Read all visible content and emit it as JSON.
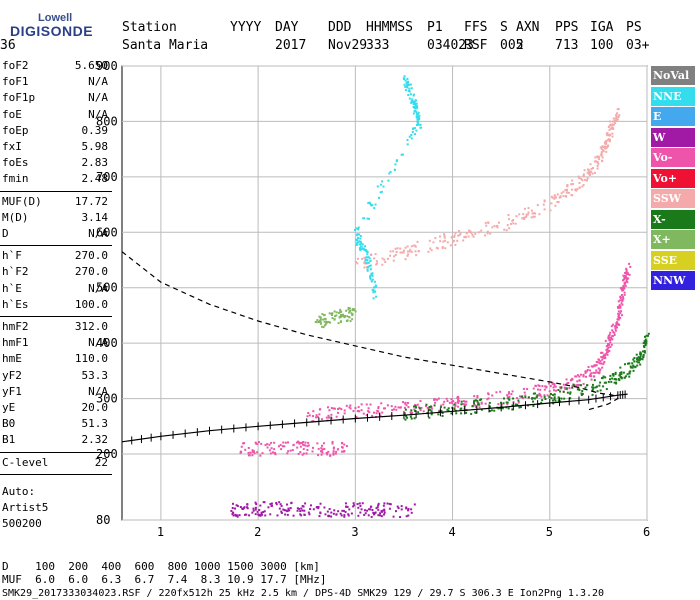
{
  "logo": {
    "top": "Lowell",
    "bottom": "DIGISONDE"
  },
  "header": {
    "labels": [
      "Station",
      "YYYY",
      "DAY",
      "DDD",
      "HHMMSS",
      "P1",
      "FFS",
      "S",
      "AXN",
      "PPS",
      "IGA",
      "PS"
    ],
    "values": [
      "Santa Maria",
      "2017",
      "Nov29",
      "333",
      "034023",
      "RSF",
      "005",
      "2",
      "713",
      "100",
      "03+",
      "36"
    ]
  },
  "params": [
    {
      "group": 1,
      "items": [
        {
          "k": "foF2",
          "v": "5.650"
        },
        {
          "k": "foF1",
          "v": "N/A"
        },
        {
          "k": "foF1p",
          "v": "N/A"
        },
        {
          "k": "foE",
          "v": "N/A"
        },
        {
          "k": "foEp",
          "v": "0.39"
        },
        {
          "k": "fxI",
          "v": "5.98"
        },
        {
          "k": "foEs",
          "v": "2.83"
        },
        {
          "k": "fmin",
          "v": "2.48"
        }
      ]
    },
    {
      "group": 2,
      "items": [
        {
          "k": "MUF(D)",
          "v": "17.72"
        },
        {
          "k": "M(D)",
          "v": "3.14"
        },
        {
          "k": "D",
          "v": "N/A"
        }
      ]
    },
    {
      "group": 3,
      "items": [
        {
          "k": "h`F",
          "v": "270.0"
        },
        {
          "k": "h`F2",
          "v": "270.0"
        },
        {
          "k": "h`E",
          "v": "N/A"
        },
        {
          "k": "h`Es",
          "v": "100.0"
        }
      ]
    },
    {
      "group": 4,
      "items": [
        {
          "k": "hmF2",
          "v": "312.0"
        },
        {
          "k": "hmF1",
          "v": "N/A"
        },
        {
          "k": "hmE",
          "v": "110.0"
        },
        {
          "k": "yF2",
          "v": "53.3"
        },
        {
          "k": "yF1",
          "v": "N/A"
        },
        {
          "k": "yE",
          "v": "20.0"
        },
        {
          "k": "B0",
          "v": "51.3"
        },
        {
          "k": "B1",
          "v": "2.32"
        }
      ]
    },
    {
      "group": 5,
      "items": [
        {
          "k": "C-level",
          "v": "22"
        }
      ]
    }
  ],
  "auto": {
    "line1": "Auto:",
    "line2": "Artist5",
    "line3": "500200"
  },
  "footer": {
    "d_line": "D    100  200  400  600  800 1000 1500 3000 [km]",
    "muf_line": "MUF  6.0  6.0  6.3  6.7  7.4  8.3 10.9 17.7 [MHz]",
    "file_line": "SMK29_2017333034023.RSF / 220fx512h 25 kHz 2.5 km / DPS-4D SMK29 129 / 29.7 S 306.3 E Ion2Png 1.3.20"
  },
  "legend": [
    {
      "label": "NoVal",
      "color": "#808080"
    },
    {
      "label": "NNE",
      "color": "#33ddee"
    },
    {
      "label": "E",
      "color": "#44a8ee"
    },
    {
      "label": "W",
      "color": "#a01aa6"
    },
    {
      "label": "Vo-",
      "color": "#ee55aa"
    },
    {
      "label": "Vo+",
      "color": "#ee1133"
    },
    {
      "label": "SSW",
      "color": "#f4aaaa"
    },
    {
      "label": "X-",
      "color": "#1a7a1a"
    },
    {
      "label": "X+",
      "color": "#80b860"
    },
    {
      "label": "SSE",
      "color": "#d8d020"
    },
    {
      "label": "NNW",
      "color": "#3322dd"
    }
  ],
  "chart_data": {
    "type": "scatter",
    "title": "",
    "xlabel": "",
    "ylabel": "",
    "xlim": [
      0.6,
      6.0
    ],
    "ylim": [
      80,
      900
    ],
    "xticks": [
      1,
      2,
      3,
      4,
      5,
      6
    ],
    "yticks": [
      80,
      200,
      300,
      400,
      500,
      600,
      700,
      800,
      900
    ],
    "grid": true,
    "legend_position": "right",
    "series": [
      {
        "name": "o-trace F2",
        "color": "#ee55aa",
        "points": [
          [
            2.5,
            272
          ],
          [
            3.0,
            278
          ],
          [
            3.5,
            284
          ],
          [
            4.0,
            292
          ],
          [
            4.5,
            302
          ],
          [
            5.0,
            318
          ],
          [
            5.3,
            335
          ],
          [
            5.5,
            360
          ],
          [
            5.6,
            400
          ],
          [
            5.7,
            450
          ],
          [
            5.75,
            500
          ],
          [
            5.8,
            540
          ]
        ]
      },
      {
        "name": "x-trace F2",
        "color": "#1a7a1a",
        "points": [
          [
            3.5,
            275
          ],
          [
            4.0,
            283
          ],
          [
            4.5,
            292
          ],
          [
            5.0,
            305
          ],
          [
            5.4,
            320
          ],
          [
            5.7,
            340
          ],
          [
            5.9,
            370
          ],
          [
            6.0,
            410
          ]
        ]
      },
      {
        "name": "2nd hop F",
        "color": "#f4aaaa",
        "points": [
          [
            3.0,
            545
          ],
          [
            3.5,
            565
          ],
          [
            4.0,
            590
          ],
          [
            4.5,
            615
          ],
          [
            5.0,
            655
          ],
          [
            5.3,
            690
          ],
          [
            5.5,
            730
          ],
          [
            5.6,
            780
          ],
          [
            5.7,
            820
          ]
        ]
      },
      {
        "name": "Es trace",
        "color": "#a01aa6",
        "points": [
          [
            1.7,
            100
          ],
          [
            2.0,
            102
          ],
          [
            2.4,
            102
          ],
          [
            2.8,
            100
          ],
          [
            3.2,
            100
          ],
          [
            3.6,
            98
          ]
        ]
      },
      {
        "name": "Es 2nd",
        "color": "#ee55aa",
        "points": [
          [
            1.8,
            210
          ],
          [
            2.2,
            212
          ],
          [
            2.6,
            212
          ],
          [
            2.9,
            210
          ]
        ]
      },
      {
        "name": "Es 3rd",
        "color": "#80b860",
        "points": [
          [
            2.6,
            440
          ],
          [
            2.8,
            450
          ],
          [
            3.0,
            455
          ]
        ]
      },
      {
        "name": "NNE spread",
        "color": "#33ddee",
        "points": [
          [
            3.5,
            880
          ],
          [
            3.6,
            830
          ],
          [
            3.65,
            800
          ],
          [
            3.0,
            600
          ],
          [
            3.1,
            560
          ],
          [
            3.2,
            490
          ]
        ]
      }
    ],
    "profile": {
      "type": "dashed",
      "points": [
        [
          0.6,
          565
        ],
        [
          1.0,
          510
        ],
        [
          1.5,
          470
        ],
        [
          2.0,
          440
        ],
        [
          2.5,
          415
        ],
        [
          3.0,
          395
        ],
        [
          3.5,
          375
        ],
        [
          4.0,
          360
        ],
        [
          4.5,
          345
        ],
        [
          5.0,
          330
        ],
        [
          5.3,
          320
        ],
        [
          5.5,
          310
        ],
        [
          5.65,
          306
        ],
        [
          5.7,
          300
        ],
        [
          5.6,
          290
        ],
        [
          5.4,
          280
        ]
      ]
    },
    "model_trace": {
      "type": "ticked",
      "points": [
        [
          0.6,
          222
        ],
        [
          1.0,
          232
        ],
        [
          1.5,
          242
        ],
        [
          2.0,
          250
        ],
        [
          2.5,
          257
        ],
        [
          3.0,
          264
        ],
        [
          3.5,
          270
        ],
        [
          4.0,
          277
        ],
        [
          4.5,
          284
        ],
        [
          5.0,
          292
        ],
        [
          5.4,
          298
        ],
        [
          5.7,
          306
        ],
        [
          5.8,
          308
        ]
      ]
    }
  }
}
